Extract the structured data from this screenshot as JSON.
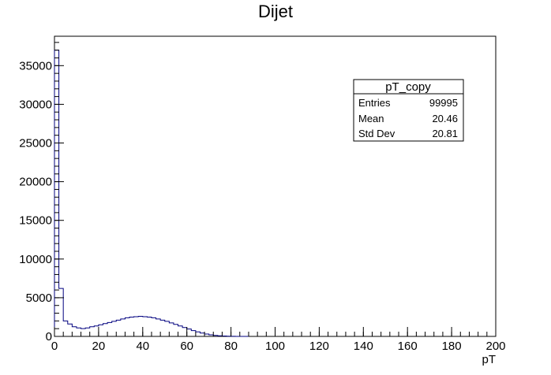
{
  "chart_data": {
    "type": "bar",
    "title": "Dijet",
    "xlabel": "pT",
    "ylabel": "",
    "xlim": [
      0,
      200
    ],
    "ylim": [
      0,
      38800
    ],
    "x_ticks": [
      0,
      20,
      40,
      60,
      80,
      100,
      120,
      140,
      160,
      180,
      200
    ],
    "y_ticks": [
      0,
      5000,
      10000,
      15000,
      20000,
      25000,
      30000,
      35000
    ],
    "x_minor_step": 4,
    "y_minor_step": 1000,
    "bin_width": 2,
    "line_color": "#00007f",
    "grid": false,
    "legend": "none",
    "series": [
      {
        "values": [
          37000,
          6200,
          2000,
          1600,
          1250,
          1100,
          1000,
          1100,
          1250,
          1350,
          1500,
          1650,
          1800,
          1950,
          2100,
          2250,
          2400,
          2500,
          2550,
          2600,
          2550,
          2500,
          2400,
          2250,
          2100,
          1950,
          1750,
          1550,
          1350,
          1150,
          950,
          750,
          580,
          430,
          300,
          200,
          130,
          80,
          45,
          25,
          12,
          6,
          3,
          1
        ]
      }
    ],
    "stats_box": {
      "name": "pT_copy",
      "position": "top-right",
      "rows": [
        {
          "label": "Entries",
          "value": "99995"
        },
        {
          "label": "Mean",
          "value": "20.46"
        },
        {
          "label": "Std Dev",
          "value": "20.81"
        }
      ]
    }
  }
}
